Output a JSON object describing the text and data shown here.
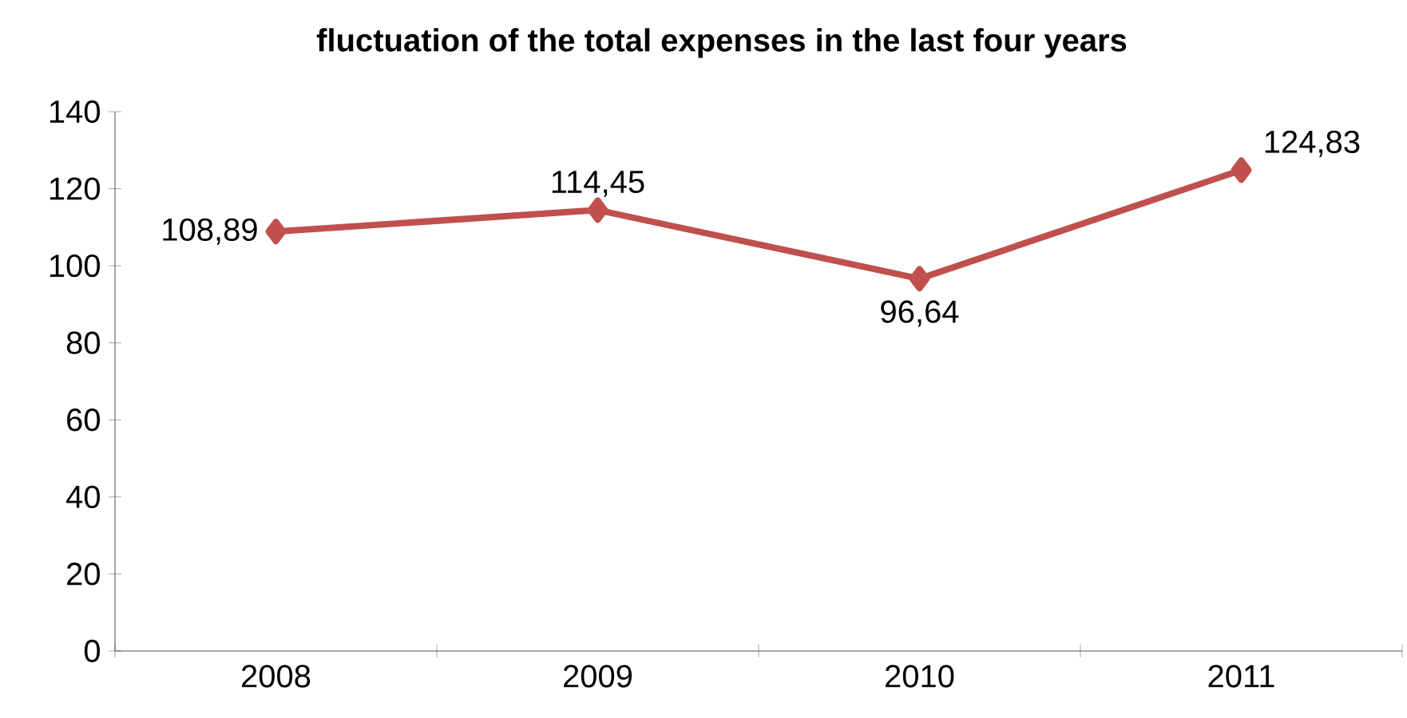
{
  "chart_data": {
    "type": "line",
    "title": "fluctuation of the total expenses in the last four years",
    "categories": [
      "2008",
      "2009",
      "2010",
      "2011"
    ],
    "series": [
      {
        "color": "#c0504d",
        "values": [
          108.89,
          114.45,
          96.64,
          124.83
        ],
        "value_labels": [
          "108,89",
          "114,45",
          "96,64",
          "124,83"
        ]
      }
    ],
    "ylim": [
      0,
      140
    ],
    "yticks": [
      0,
      20,
      40,
      60,
      80,
      100,
      120,
      140
    ],
    "grid": false,
    "marker": "diamond",
    "line_style": "solid"
  }
}
